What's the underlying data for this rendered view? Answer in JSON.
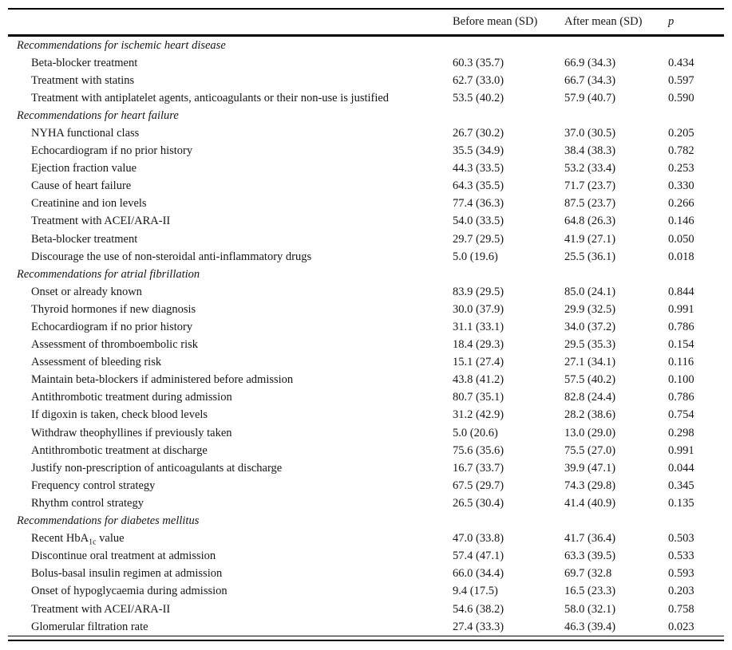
{
  "colors": {
    "background": "#ffffff",
    "text": "#151515",
    "rule": "#000000"
  },
  "table": {
    "header": {
      "before": "Before mean (SD)",
      "after": "After mean (SD)",
      "p": "p"
    },
    "rows": [
      {
        "type": "section",
        "label": "Recommendations for ischemic heart disease"
      },
      {
        "type": "item",
        "label": "Beta-blocker treatment",
        "before": "60.3 (35.7)",
        "after": "66.9 (34.3)",
        "p": "0.434"
      },
      {
        "type": "item",
        "label": "Treatment with statins",
        "before": "62.7 (33.0)",
        "after": "66.7 (34.3)",
        "p": "0.597"
      },
      {
        "type": "item",
        "label": "Treatment with antiplatelet agents, anticoagulants or their non-use is justified",
        "before": "53.5 (40.2)",
        "after": "57.9 (40.7)",
        "p": "0.590"
      },
      {
        "type": "section",
        "label": "Recommendations for heart failure"
      },
      {
        "type": "item",
        "label": "NYHA functional class",
        "before": "26.7 (30.2)",
        "after": "37.0 (30.5)",
        "p": "0.205"
      },
      {
        "type": "item",
        "label": "Echocardiogram if no prior history",
        "before": "35.5 (34.9)",
        "after": "38.4 (38.3)",
        "p": "0.782"
      },
      {
        "type": "item",
        "label": "Ejection fraction value",
        "before": "44.3 (33.5)",
        "after": "53.2 (33.4)",
        "p": "0.253"
      },
      {
        "type": "item",
        "label": "Cause of heart failure",
        "before": "64.3 (35.5)",
        "after": "71.7 (23.7)",
        "p": "0.330"
      },
      {
        "type": "item",
        "label": "Creatinine and ion levels",
        "before": "77.4 (36.3)",
        "after": "87.5 (23.7)",
        "p": "0.266"
      },
      {
        "type": "item",
        "label": "Treatment with ACEI/ARA-II",
        "before": "54.0 (33.5)",
        "after": "64.8 (26.3)",
        "p": "0.146"
      },
      {
        "type": "item",
        "label": "Beta-blocker treatment",
        "before": "29.7 (29.5)",
        "after": "41.9 (27.1)",
        "p": "0.050"
      },
      {
        "type": "item",
        "label": "Discourage the use of non-steroidal anti-inflammatory drugs",
        "before": "5.0 (19.6)",
        "after": "25.5 (36.1)",
        "p": "0.018"
      },
      {
        "type": "section",
        "label": "Recommendations for atrial fibrillation"
      },
      {
        "type": "item",
        "label": "Onset or already known",
        "before": "83.9 (29.5)",
        "after": "85.0 (24.1)",
        "p": "0.844"
      },
      {
        "type": "item",
        "label": "Thyroid hormones if new diagnosis",
        "before": "30.0 (37.9)",
        "after": "29.9 (32.5)",
        "p": "0.991"
      },
      {
        "type": "item",
        "label": "Echocardiogram if no prior history",
        "before": "31.1 (33.1)",
        "after": "34.0 (37.2)",
        "p": "0.786"
      },
      {
        "type": "item",
        "label": "Assessment of thromboembolic risk",
        "before": "18.4 (29.3)",
        "after": "29.5 (35.3)",
        "p": "0.154"
      },
      {
        "type": "item",
        "label": "Assessment of bleeding risk",
        "before": "15.1 (27.4)",
        "after": "27.1 (34.1)",
        "p": "0.116"
      },
      {
        "type": "item",
        "label": "Maintain beta-blockers if administered before admission",
        "before": "43.8 (41.2)",
        "after": "57.5 (40.2)",
        "p": "0.100"
      },
      {
        "type": "item",
        "label": "Antithrombotic treatment during admission",
        "before": "80.7 (35.1)",
        "after": "82.8 (24.4)",
        "p": "0.786"
      },
      {
        "type": "item",
        "label": "If digoxin is taken, check blood levels",
        "before": "31.2 (42.9)",
        "after": "28.2 (38.6)",
        "p": "0.754"
      },
      {
        "type": "item",
        "label": "Withdraw theophyllines if previously taken",
        "before": "5.0 (20.6)",
        "after": "13.0 (29.0)",
        "p": "0.298"
      },
      {
        "type": "item",
        "label": "Antithrombotic treatment at discharge",
        "before": "75.6 (35.6)",
        "after": "75.5 (27.0)",
        "p": "0.991"
      },
      {
        "type": "item",
        "label": "Justify non-prescription of anticoagulants at discharge",
        "before": "16.7 (33.7)",
        "after": "39.9 (47.1)",
        "p": "0.044"
      },
      {
        "type": "item",
        "label": "Frequency control strategy",
        "before": "67.5 (29.7)",
        "after": "74.3 (29.8)",
        "p": "0.345"
      },
      {
        "type": "item",
        "label": "Rhythm control strategy",
        "before": "26.5 (30.4)",
        "after": "41.4 (40.9)",
        "p": "0.135"
      },
      {
        "type": "section",
        "label": "Recommendations for diabetes mellitus"
      },
      {
        "type": "item",
        "label": "Recent HbA~1c~ value",
        "before": "47.0 (33.8)",
        "after": "41.7 (36.4)",
        "p": "0.503"
      },
      {
        "type": "item",
        "label": "Discontinue oral treatment at admission",
        "before": "57.4 (47.1)",
        "after": "63.3 (39.5)",
        "p": "0.533"
      },
      {
        "type": "item",
        "label": "Bolus-basal insulin regimen at admission",
        "before": "66.0 (34.4)",
        "after": "69.7 (32.8",
        "p": "0.593"
      },
      {
        "type": "item",
        "label": "Onset of hypoglycaemia during admission",
        "before": "9.4 (17.5)",
        "after": "16.5 (23.3)",
        "p": "0.203"
      },
      {
        "type": "item",
        "label": "Treatment with ACEI/ARA-II",
        "before": "54.6 (38.2)",
        "after": "58.0 (32.1)",
        "p": "0.758"
      },
      {
        "type": "item",
        "label": "Glomerular filtration rate",
        "before": "27.4 (33.3)",
        "after": "46.3 (39.4)",
        "p": "0.023"
      }
    ]
  }
}
